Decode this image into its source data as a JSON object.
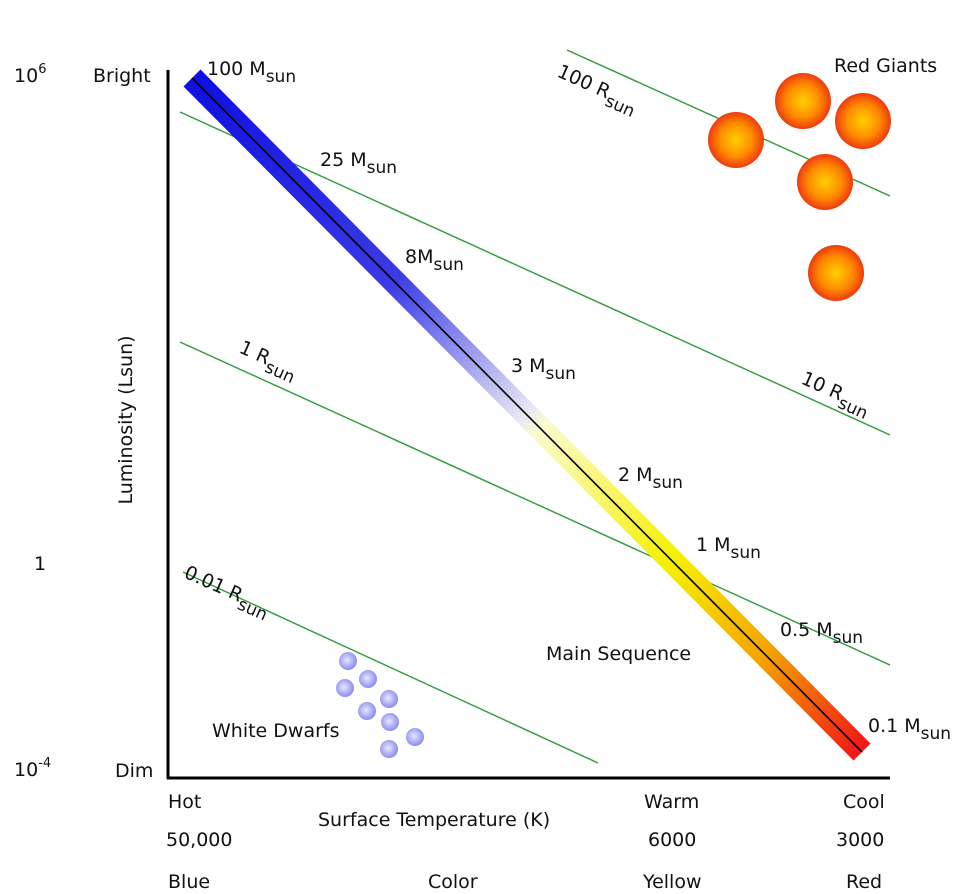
{
  "y_axis": {
    "title": "Luminosity (Lsun)",
    "top_end": "Bright",
    "bottom_end": "Dim",
    "ticks": [
      {
        "base": "10",
        "exp": "6"
      },
      {
        "base": "1"
      },
      {
        "base": "10",
        "exp": "-4"
      }
    ]
  },
  "x_axis": {
    "title": "Surface Temperature (K)",
    "color_label": "Color",
    "columns": [
      {
        "name": "Hot",
        "temperature": "50,000",
        "color": "Blue"
      },
      {
        "name": "Warm",
        "temperature": "6000",
        "color": "Yellow"
      },
      {
        "name": "Cool",
        "temperature": "3000",
        "color": "Red"
      }
    ]
  },
  "regions": {
    "red_giants": "Red Giants",
    "main_sequence": "Main Sequence",
    "white_dwarfs": "White Dwarfs"
  },
  "mass_labels": [
    {
      "text": "100 M",
      "sub": "sun"
    },
    {
      "text": "25 M",
      "sub": "sun"
    },
    {
      "text": "8M",
      "sub": "sun"
    },
    {
      "text": "3 M",
      "sub": "sun"
    },
    {
      "text": "2 M",
      "sub": "sun"
    },
    {
      "text": "1 M",
      "sub": "sun"
    },
    {
      "text": "0.5 M",
      "sub": "sun"
    },
    {
      "text": "0.1 M",
      "sub": "sun"
    }
  ],
  "radius_labels": [
    {
      "text": "100 R",
      "sub": "sun"
    },
    {
      "text": "10 R",
      "sub": "sun"
    },
    {
      "text": "1 R",
      "sub": "sun"
    },
    {
      "text": "0.01 R",
      "sub": "sun"
    }
  ]
}
